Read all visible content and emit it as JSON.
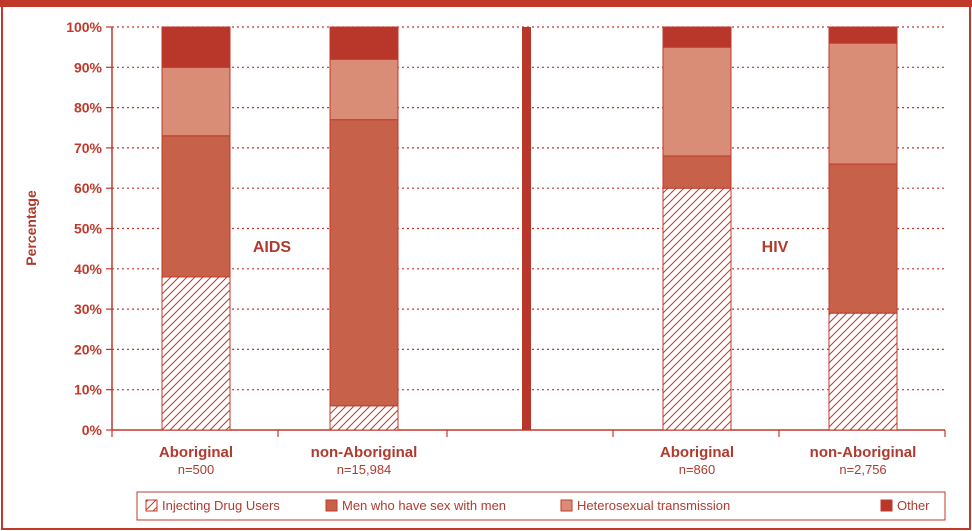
{
  "chart_data": {
    "type": "bar",
    "stacked": true,
    "percent": true,
    "ylabel": "Percentage",
    "yticks": [
      "0%",
      "10%",
      "20%",
      "30%",
      "40%",
      "50%",
      "60%",
      "70%",
      "80%",
      "90%",
      "100%"
    ],
    "ylim": [
      0,
      100
    ],
    "grid": true,
    "legend_position": "bottom",
    "categories": [
      {
        "label": "Aboriginal",
        "sub": "n=500"
      },
      {
        "label": "non-Aboriginal",
        "sub": "n=15,984"
      },
      {
        "label": "Aboriginal",
        "sub": "n=860"
      },
      {
        "label": "non-Aboriginal",
        "sub": "n=2,756"
      }
    ],
    "series": [
      {
        "name": "Injecting Drug Users",
        "color": "#ffffff",
        "hatch": true,
        "values": [
          38,
          6,
          60,
          29
        ]
      },
      {
        "name": "Men who have sex with men",
        "color": "#c8614a",
        "values": [
          35,
          71,
          8,
          37
        ]
      },
      {
        "name": "Heterosexual transmission",
        "color": "#d98c76",
        "values": [
          17,
          15,
          27,
          30
        ]
      },
      {
        "name": "Other",
        "color": "#b8362a",
        "values": [
          10,
          8,
          5,
          4
        ]
      }
    ],
    "annotations": [
      {
        "text": "AIDS"
      },
      {
        "text": "HIV"
      }
    ]
  }
}
